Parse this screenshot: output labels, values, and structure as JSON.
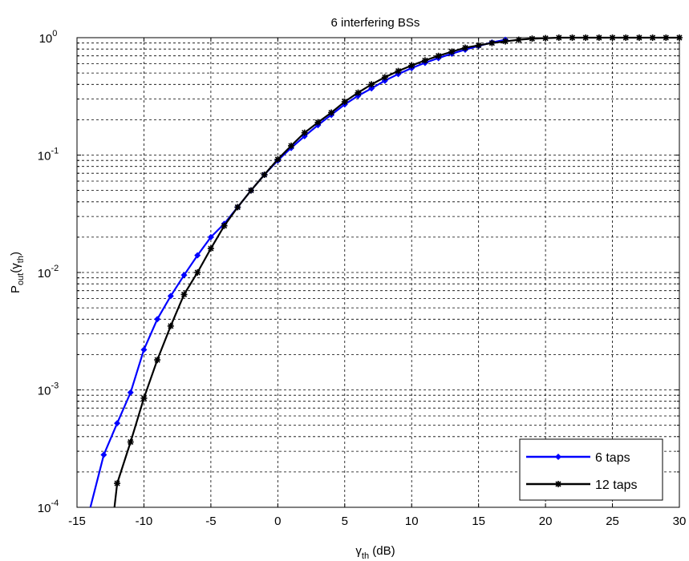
{
  "chart_data": {
    "type": "line",
    "title": "6 interfering BSs",
    "xlabel": {
      "main": "γ",
      "sub": "th",
      "rest": " (dB)"
    },
    "ylabel": {
      "main": "P",
      "sub1": "out",
      "mid": "(γ",
      "sub2": "th",
      "end": ")"
    },
    "xlim": [
      -15,
      30
    ],
    "ylim": [
      0.0001,
      1
    ],
    "yscale": "log",
    "grid": true,
    "legend_position": "bottom-right",
    "x_ticks": [
      "-15",
      "-10",
      "-5",
      "0",
      "5",
      "10",
      "15",
      "20",
      "25",
      "30"
    ],
    "y_ticks": [
      {
        "base": "10",
        "exp": "-4"
      },
      {
        "base": "10",
        "exp": "-3"
      },
      {
        "base": "10",
        "exp": "-2"
      },
      {
        "base": "10",
        "exp": "-1"
      },
      {
        "base": "10",
        "exp": "0"
      }
    ],
    "series": [
      {
        "name": "6 taps",
        "color": "#0000ff",
        "marker": "diamond",
        "x": [
          -14,
          -13,
          -12,
          -11,
          -10,
          -9,
          -8,
          -7,
          -6,
          -5,
          -4,
          -3,
          -2,
          -1,
          0,
          1,
          2,
          3,
          4,
          5,
          6,
          7,
          8,
          9,
          10,
          11,
          12,
          13,
          14,
          15,
          16,
          17
        ],
        "y": [
          0.0001,
          0.00028,
          0.00052,
          0.00095,
          0.0022,
          0.004,
          0.0063,
          0.0095,
          0.014,
          0.02,
          0.026,
          0.036,
          0.05,
          0.068,
          0.09,
          0.115,
          0.145,
          0.18,
          0.22,
          0.27,
          0.32,
          0.37,
          0.43,
          0.49,
          0.55,
          0.61,
          0.67,
          0.73,
          0.79,
          0.85,
          0.91,
          0.96
        ]
      },
      {
        "name": "12 taps",
        "color": "#000000",
        "marker": "star",
        "x": [
          -12.2,
          -12,
          -11,
          -10,
          -9,
          -8,
          -7,
          -6,
          -5,
          -4,
          -3,
          -2,
          -1,
          0,
          1,
          2,
          3,
          4,
          5,
          6,
          7,
          8,
          9,
          10,
          11,
          12,
          13,
          14,
          15,
          16,
          17,
          18,
          19,
          20,
          21,
          22,
          23,
          24,
          25,
          26,
          27,
          28,
          29,
          30
        ],
        "y": [
          0.0001,
          0.00016,
          0.00036,
          0.00085,
          0.0018,
          0.0035,
          0.0065,
          0.01,
          0.016,
          0.025,
          0.036,
          0.05,
          0.068,
          0.092,
          0.12,
          0.155,
          0.19,
          0.23,
          0.285,
          0.34,
          0.4,
          0.46,
          0.52,
          0.58,
          0.64,
          0.7,
          0.76,
          0.82,
          0.86,
          0.9,
          0.93,
          0.96,
          0.98,
          0.99,
          1.0,
          1.0,
          1.0,
          1.0,
          1.0,
          1.0,
          1.0,
          1.0,
          1.0,
          1.0
        ]
      }
    ]
  }
}
